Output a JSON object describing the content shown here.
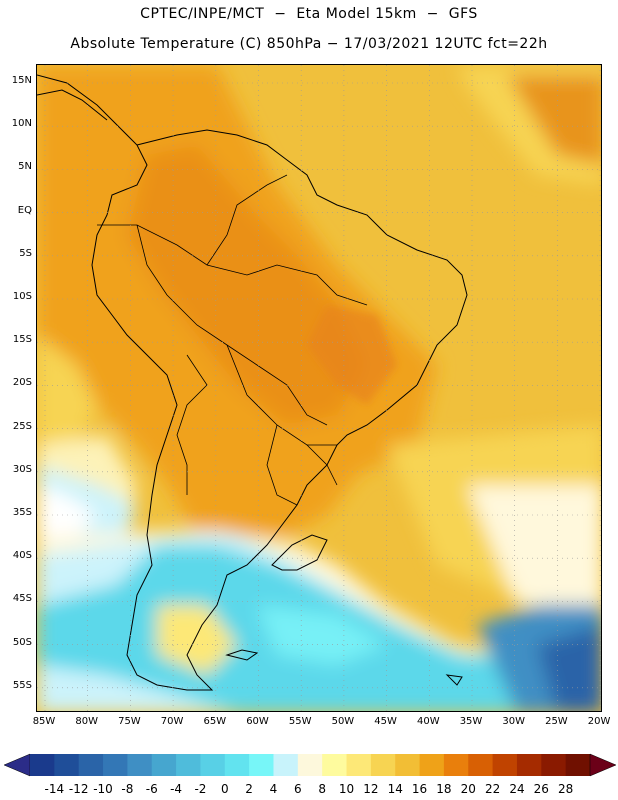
{
  "header": {
    "title_line1": "CPTEC/INPE/MCT  −  Eta Model 15km  −  GFS",
    "title_line2": "Absolute Temperature (C) 850hPa − 17/03/2021 12UTC fct=22h"
  },
  "map": {
    "latitude_labels": [
      "15N",
      "10N",
      "5N",
      "EQ",
      "5S",
      "10S",
      "15S",
      "20S",
      "25S",
      "30S",
      "35S",
      "40S",
      "45S",
      "50S",
      "55S"
    ],
    "longitude_labels": [
      "85W",
      "80W",
      "75W",
      "70W",
      "65W",
      "60W",
      "55W",
      "50W",
      "45W",
      "40W",
      "35W",
      "30W",
      "25W",
      "20W"
    ],
    "grid": "dotted",
    "field_colors": {
      "hot_ocean": "#f0c03c",
      "warm_land": "#f0a21e",
      "hot_core": "#e8841c",
      "cold_sea": "#5cd8ea",
      "cool_band": "#ccf3fb",
      "mild_band": "#fff8dc"
    }
  },
  "colorbar": {
    "labels": [
      "-14",
      "-12",
      "-10",
      "-8",
      "-6",
      "-4",
      "-2",
      "0",
      "2",
      "4",
      "6",
      "8",
      "10",
      "12",
      "14",
      "16",
      "18",
      "20",
      "22",
      "24",
      "26",
      "28"
    ],
    "colors": [
      "#1a3a8c",
      "#1f4e99",
      "#2a64a8",
      "#3377b6",
      "#3f8fc4",
      "#46a6cf",
      "#4fbcdb",
      "#58d0e6",
      "#62e3ef",
      "#77f6f8",
      "#c8f3fb",
      "#fdf8dc",
      "#fefb9e",
      "#fde877",
      "#f7d452",
      "#f2be35",
      "#efa218",
      "#e97f0c",
      "#d86004",
      "#c04300",
      "#a52b00",
      "#8a1a00",
      "#701000"
    ],
    "min_color": "#2b2c88",
    "max_color": "#6b0018"
  }
}
